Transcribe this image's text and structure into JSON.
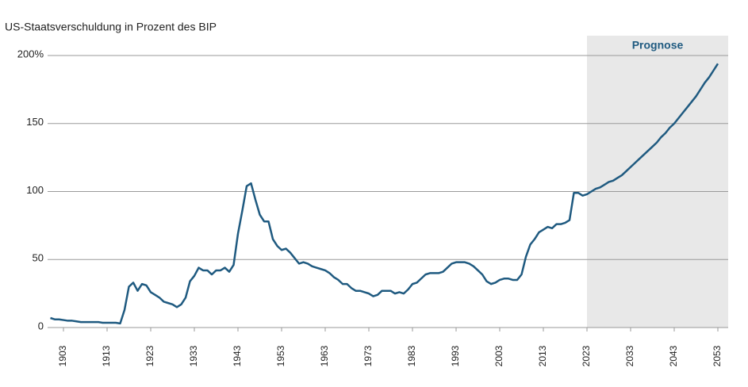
{
  "chart_data": {
    "type": "line",
    "title": "US-Staatsverschuldung in Prozent des BIP",
    "forecast_label": "Prognose",
    "forecast_start": 2023,
    "forecast_color": "#e8e8e8",
    "color": "#1f5a80",
    "grid": true,
    "xlim": [
      1900,
      2055
    ],
    "xticks": [
      1903,
      1913,
      1923,
      1933,
      1943,
      1953,
      1963,
      1973,
      1983,
      1993,
      2003,
      2013,
      2023,
      2033,
      2043,
      2053
    ],
    "ylim": [
      0,
      200
    ],
    "yticks": [
      0,
      50,
      100,
      150,
      {
        "value": 200,
        "label": "200%"
      }
    ],
    "x": [
      1900,
      1901,
      1902,
      1903,
      1904,
      1905,
      1906,
      1907,
      1908,
      1909,
      1910,
      1911,
      1912,
      1913,
      1914,
      1915,
      1916,
      1917,
      1918,
      1919,
      1920,
      1921,
      1922,
      1923,
      1924,
      1925,
      1926,
      1927,
      1928,
      1929,
      1930,
      1931,
      1932,
      1933,
      1934,
      1935,
      1936,
      1937,
      1938,
      1939,
      1940,
      1941,
      1942,
      1943,
      1944,
      1945,
      1946,
      1947,
      1948,
      1949,
      1950,
      1951,
      1952,
      1953,
      1954,
      1955,
      1956,
      1957,
      1958,
      1959,
      1960,
      1961,
      1962,
      1963,
      1964,
      1965,
      1966,
      1967,
      1968,
      1969,
      1970,
      1971,
      1972,
      1973,
      1974,
      1975,
      1976,
      1977,
      1978,
      1979,
      1980,
      1981,
      1982,
      1983,
      1984,
      1985,
      1986,
      1987,
      1988,
      1989,
      1990,
      1991,
      1992,
      1993,
      1994,
      1995,
      1996,
      1997,
      1998,
      1999,
      2000,
      2001,
      2002,
      2003,
      2004,
      2005,
      2006,
      2007,
      2008,
      2009,
      2010,
      2011,
      2012,
      2013,
      2014,
      2015,
      2016,
      2017,
      2018,
      2019,
      2020,
      2021,
      2022,
      2023,
      2024,
      2025,
      2026,
      2027,
      2028,
      2029,
      2030,
      2031,
      2032,
      2033,
      2034,
      2035,
      2036,
      2037,
      2038,
      2039,
      2040,
      2041,
      2042,
      2043,
      2044,
      2045,
      2046,
      2047,
      2048,
      2049,
      2050,
      2051,
      2052,
      2053
    ],
    "values": [
      7,
      6,
      6,
      5.5,
      5,
      5,
      4.5,
      4,
      4,
      4,
      4,
      4,
      3.5,
      3.5,
      3.5,
      3.5,
      3,
      13,
      30,
      33,
      27,
      32,
      31,
      26,
      24,
      22,
      19,
      18,
      17,
      15,
      17,
      22,
      34,
      38,
      44,
      42,
      42,
      39,
      42,
      42,
      44,
      41,
      46,
      69,
      86,
      104,
      106,
      94,
      83,
      78,
      78,
      65,
      60,
      57,
      58,
      55,
      51,
      47,
      48,
      47,
      45,
      44,
      43,
      42,
      40,
      37,
      35,
      32,
      32,
      29,
      27,
      27,
      26,
      25,
      23,
      24,
      27,
      27,
      27,
      25,
      26,
      25,
      28,
      32,
      33,
      36,
      39,
      40,
      40,
      40,
      41,
      44,
      47,
      48,
      48,
      48,
      47,
      45,
      42,
      39,
      34,
      32,
      33,
      35,
      36,
      36,
      35,
      35,
      39,
      52,
      61,
      65,
      70,
      72,
      74,
      73,
      76,
      76,
      77,
      79,
      99,
      99,
      97,
      98,
      100,
      102,
      103,
      105,
      107,
      108,
      110,
      112,
      115,
      118,
      121,
      124,
      127,
      130,
      133,
      136,
      140,
      143,
      147,
      150,
      154,
      158,
      162,
      166,
      170,
      175,
      180,
      184,
      189,
      194
    ]
  }
}
